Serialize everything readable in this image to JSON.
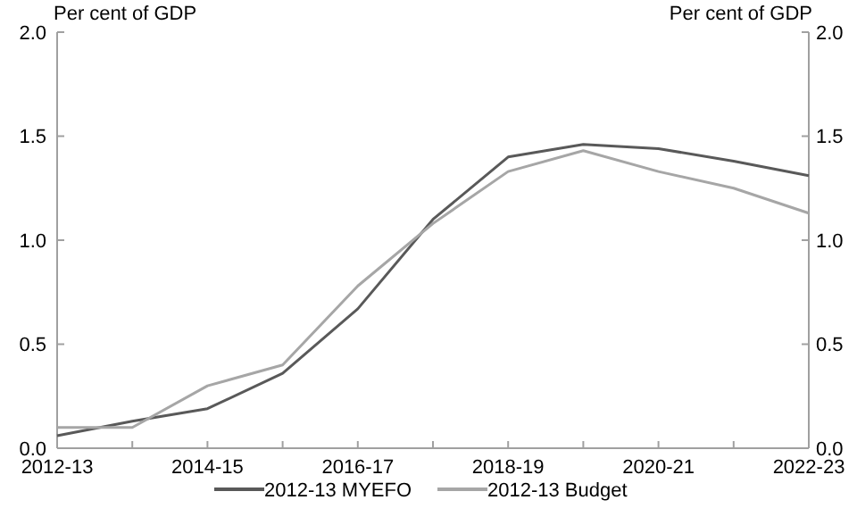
{
  "chart_data": {
    "type": "line",
    "ylabel": "Per cent of GDP",
    "y2label": "Per cent of GDP",
    "categories": [
      "2012-13",
      null,
      "2014-15",
      null,
      "2016-17",
      null,
      "2018-19",
      null,
      "2020-21",
      null,
      "2022-23"
    ],
    "series": [
      {
        "name": "2012-13 MYEFO",
        "color": "#595959",
        "values": [
          0.06,
          0.13,
          0.19,
          0.36,
          0.67,
          1.1,
          1.4,
          1.46,
          1.44,
          1.38,
          1.31
        ]
      },
      {
        "name": "2012-13 Budget",
        "color": "#a6a6a6",
        "values": [
          0.1,
          0.1,
          0.3,
          0.4,
          0.78,
          1.08,
          1.33,
          1.43,
          1.33,
          1.25,
          1.13
        ]
      }
    ],
    "ylim": [
      0,
      2
    ],
    "yticks": [
      {
        "value": 0,
        "label": "0.0"
      },
      {
        "value": 0.5,
        "label": "0.5"
      },
      {
        "value": 1,
        "label": "1.0"
      },
      {
        "value": 1.5,
        "label": "1.5"
      },
      {
        "value": 2,
        "label": "2.0"
      }
    ],
    "y2lim": [
      0,
      2
    ],
    "y2ticks": [
      {
        "value": 0,
        "label": "0.0"
      },
      {
        "value": 0.5,
        "label": "0.5"
      },
      {
        "value": 1,
        "label": "1.0"
      },
      {
        "value": 1.5,
        "label": "1.5"
      },
      {
        "value": 2,
        "label": "2.0"
      }
    ],
    "legend": "bottom",
    "grid": false,
    "line_style": "solid"
  }
}
